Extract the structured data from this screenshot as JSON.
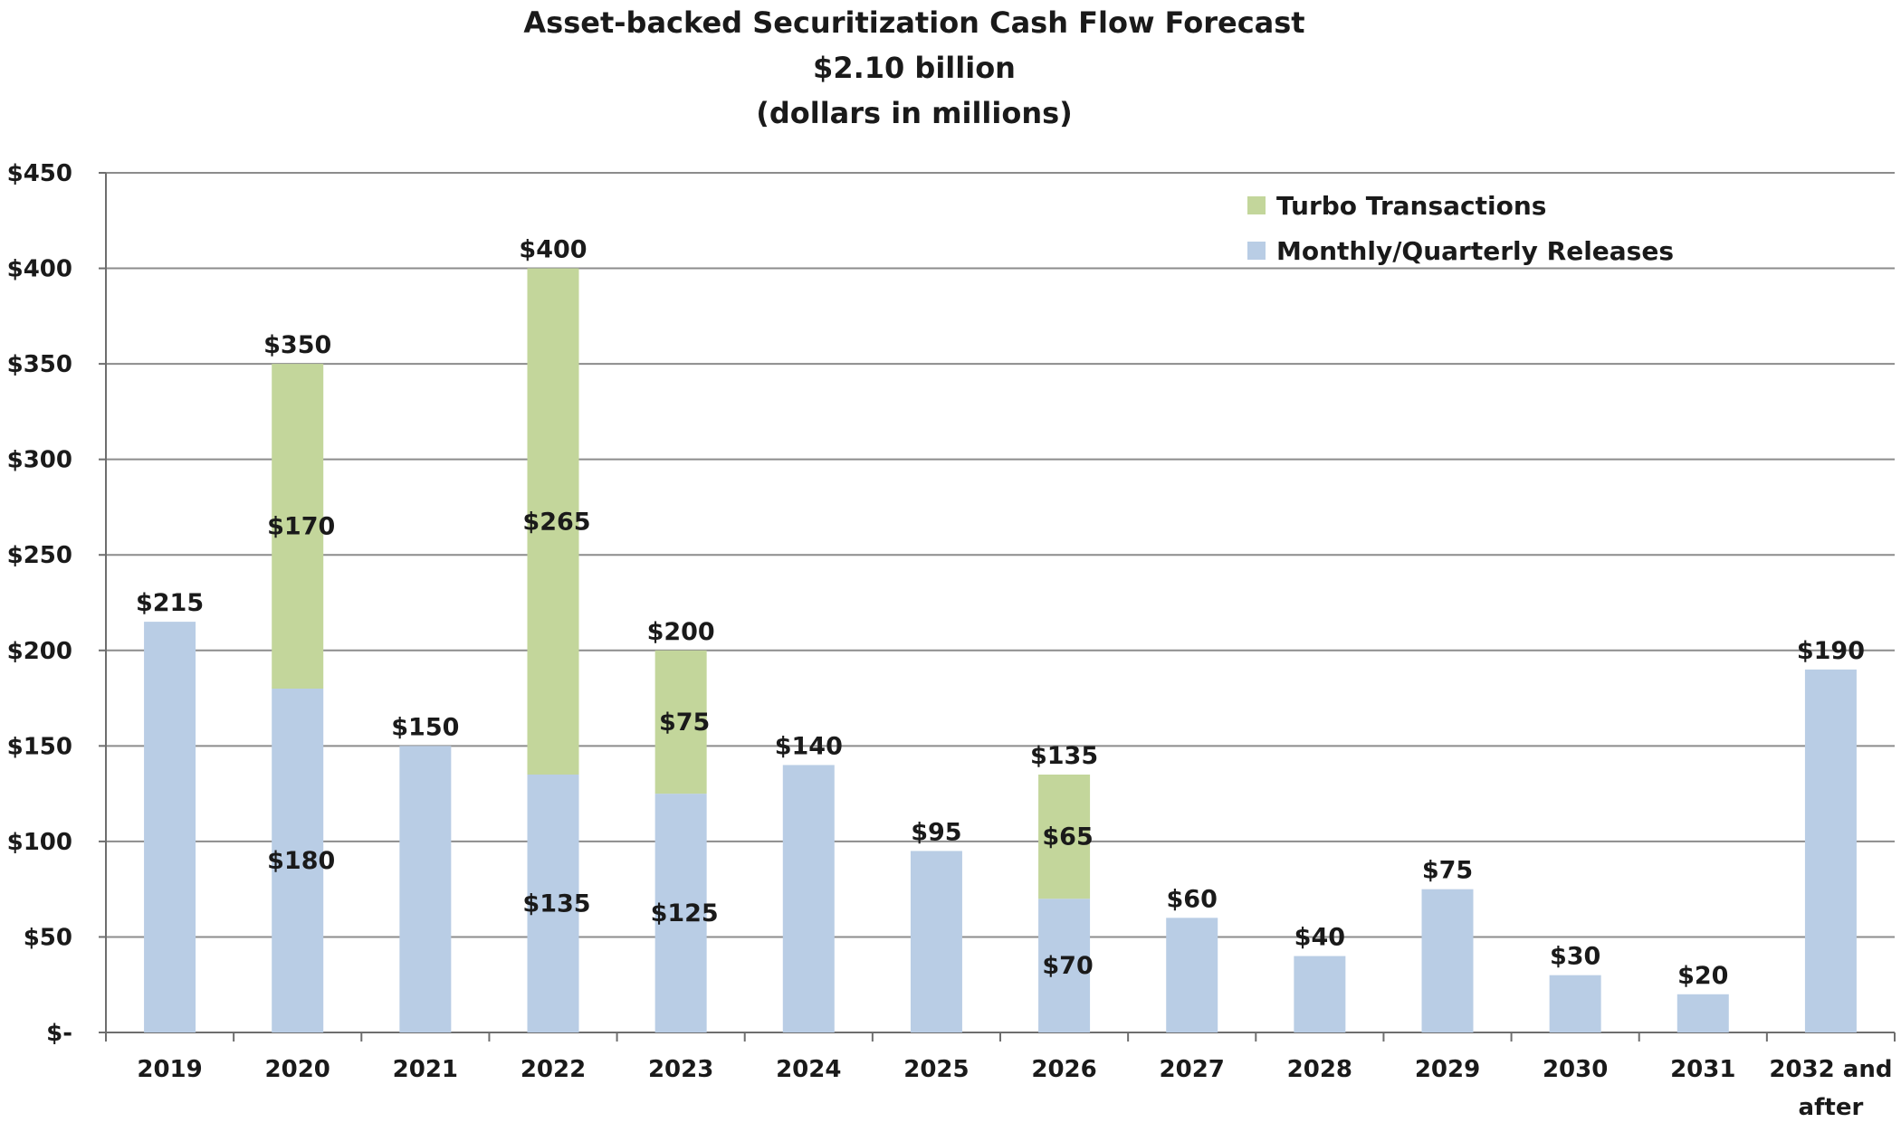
{
  "chart_data": {
    "type": "bar",
    "stacked": true,
    "title": "Asset-backed Securitization Cash Flow Forecast",
    "subtitle_1": "$2.10 billion",
    "subtitle_2": "(dollars in millions)",
    "categories": [
      "2019",
      "2020",
      "2021",
      "2022",
      "2023",
      "2024",
      "2025",
      "2026",
      "2027",
      "2028",
      "2029",
      "2030",
      "2031",
      "2032 and after"
    ],
    "category_lines": [
      [
        "2019"
      ],
      [
        "2020"
      ],
      [
        "2021"
      ],
      [
        "2022"
      ],
      [
        "2023"
      ],
      [
        "2024"
      ],
      [
        "2025"
      ],
      [
        "2026"
      ],
      [
        "2027"
      ],
      [
        "2028"
      ],
      [
        "2029"
      ],
      [
        "2030"
      ],
      [
        "2031"
      ],
      [
        "2032 and",
        "after"
      ]
    ],
    "series": [
      {
        "name": "Monthly/Quarterly Releases",
        "color": "#b9cde5",
        "values": [
          215,
          180,
          150,
          135,
          125,
          140,
          95,
          70,
          60,
          40,
          75,
          30,
          20,
          190
        ],
        "value_labels": [
          "",
          "$180",
          "",
          "$135",
          "$125",
          "",
          "",
          "$70",
          "",
          "",
          "",
          "",
          "",
          ""
        ]
      },
      {
        "name": "Turbo Transactions",
        "color": "#c3d69b",
        "values": [
          0,
          170,
          0,
          265,
          75,
          0,
          0,
          65,
          0,
          0,
          0,
          0,
          0,
          0
        ],
        "value_labels": [
          "",
          "$170",
          "",
          "$265",
          "$75",
          "",
          "",
          "$65",
          "",
          "",
          "",
          "",
          "",
          ""
        ]
      }
    ],
    "totals": [
      215,
      350,
      150,
      400,
      200,
      140,
      95,
      135,
      60,
      40,
      75,
      30,
      20,
      190
    ],
    "total_labels": [
      "$215",
      "$350",
      "$150",
      "$400",
      "$200",
      "$140",
      "$95",
      "$135",
      "$60",
      "$40",
      "$75",
      "$30",
      "$20",
      "$190"
    ],
    "ylim": [
      0,
      450
    ],
    "y_ticks": [
      0,
      50,
      100,
      150,
      200,
      250,
      300,
      350,
      400,
      450
    ],
    "y_tick_labels": [
      "$-",
      "$50",
      "$100",
      "$150",
      "$200",
      "$250",
      "$300",
      "$350",
      "$400",
      "$450"
    ],
    "xlabel": "",
    "ylabel": "",
    "grid": true,
    "legend_position": "top-right",
    "legend_order": [
      "Turbo Transactions",
      "Monthly/Quarterly Releases"
    ],
    "gridline_color": "#8c8c8c"
  }
}
